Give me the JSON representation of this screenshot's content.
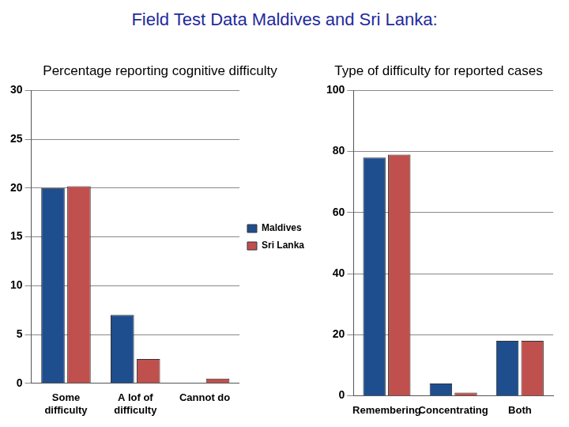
{
  "title": "Field Test Data Maldives and Sri Lanka:",
  "chart_data": [
    {
      "type": "bar",
      "title": "Percentage reporting cognitive difficulty",
      "categories": [
        "Some difficulty",
        "A lof of difficulty",
        "Cannot do"
      ],
      "series": [
        {
          "name": "Maldives",
          "color": "#1f4e8f",
          "values": [
            20,
            7,
            0
          ]
        },
        {
          "name": "Sri Lanka",
          "color": "#c0504d",
          "values": [
            20.2,
            2.5,
            0.5
          ]
        }
      ],
      "ylim": [
        0,
        30
      ],
      "yticks": [
        0,
        5,
        10,
        15,
        20,
        25,
        30
      ],
      "grid": true,
      "legend": "right"
    },
    {
      "type": "bar",
      "title": "Type of difficulty for reported cases",
      "categories": [
        "Remembering",
        "Concentrating",
        "Both"
      ],
      "series": [
        {
          "name": "Maldives",
          "color": "#1f4e8f",
          "values": [
            78,
            4,
            18
          ]
        },
        {
          "name": "Sri Lanka",
          "color": "#c0504d",
          "values": [
            79,
            1,
            18
          ]
        }
      ],
      "ylim": [
        0,
        100
      ],
      "yticks": [
        0,
        20,
        40,
        60,
        80,
        100
      ],
      "grid": true
    }
  ]
}
